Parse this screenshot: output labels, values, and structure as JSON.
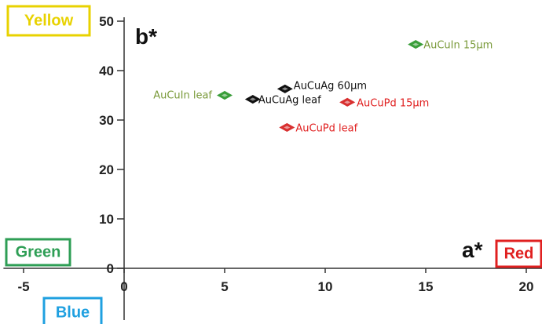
{
  "chart_data": {
    "type": "scatter",
    "xlabel": "a*",
    "ylabel": "b*",
    "xlim": [
      -6,
      20.5
    ],
    "ylim": [
      -6,
      50
    ],
    "x_ticks": [
      -5,
      0,
      5,
      10,
      15,
      20
    ],
    "y_ticks": [
      0,
      10,
      20,
      30,
      40,
      50
    ],
    "grid": false,
    "points": [
      {
        "label": "AuCuIn 15μm",
        "x": 14.5,
        "y": 45.3,
        "color": "#3a9e3a",
        "text_color": "#7a9a3a"
      },
      {
        "label": "AuCuIn leaf",
        "x": 5.0,
        "y": 35.0,
        "color": "#3a9e3a",
        "text_color": "#7a9a3a"
      },
      {
        "label": "AuCuAg 60μm",
        "x": 8.0,
        "y": 36.3,
        "color": "#111111",
        "text_color": "#111111"
      },
      {
        "label": "AuCuAg leaf",
        "x": 6.4,
        "y": 34.2,
        "color": "#111111",
        "text_color": "#111111"
      },
      {
        "label": "AuCuPd 15μm",
        "x": 11.1,
        "y": 33.6,
        "color": "#d83030",
        "text_color": "#e02020"
      },
      {
        "label": "AuCuPd leaf",
        "x": 8.1,
        "y": 28.5,
        "color": "#d83030",
        "text_color": "#e02020"
      }
    ],
    "direction_labels": [
      {
        "label": "Yellow",
        "color": "#e8d200",
        "border": "#e8d200"
      },
      {
        "label": "Green",
        "color": "#2e9e55",
        "border": "#2e9e55"
      },
      {
        "label": "Red",
        "color": "#e02020",
        "border": "#e02020"
      },
      {
        "label": "Blue",
        "color": "#1fa0e0",
        "border": "#1fa0e0"
      }
    ]
  }
}
